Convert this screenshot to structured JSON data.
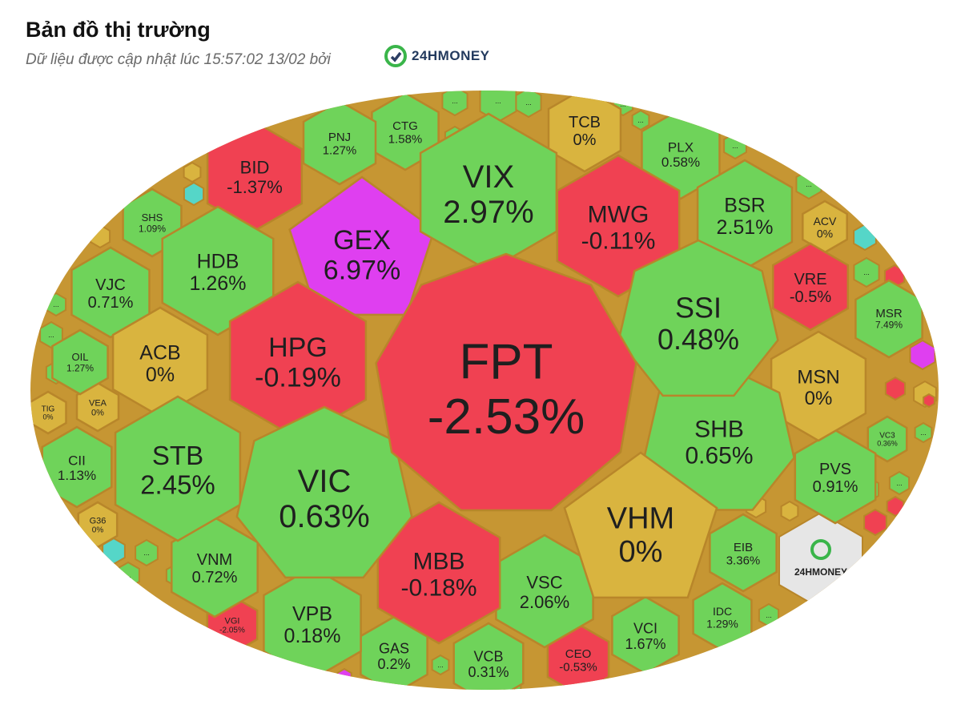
{
  "header": {
    "title": "Bản đồ thị trường",
    "subtitle": "Dữ liệu được cập nhật lúc 15:57:02 13/02 bởi",
    "brand_name": "24HMONEY"
  },
  "colors": {
    "up": "#6fd35a",
    "down": "#f04152",
    "flat": "#d9b43f",
    "ceiling": "#df3ff0",
    "floor": "#55d6c8",
    "logo_cell": "#e6e6e6",
    "border": "#b8862a"
  },
  "chart_data": {
    "type": "treemap",
    "title": "Bản đồ thị trường",
    "tiles": [
      {
        "ticker": "FPT",
        "change": "-2.53%",
        "value": -2.53,
        "status": "down"
      },
      {
        "ticker": "VIX",
        "change": "2.97%",
        "value": 2.97,
        "status": "up"
      },
      {
        "ticker": "GEX",
        "change": "6.97%",
        "value": 6.97,
        "status": "ceiling"
      },
      {
        "ticker": "HPG",
        "change": "-0.19%",
        "value": -0.19,
        "status": "down"
      },
      {
        "ticker": "MWG",
        "change": "-0.11%",
        "value": -0.11,
        "status": "down"
      },
      {
        "ticker": "SSI",
        "change": "0.48%",
        "value": 0.48,
        "status": "up"
      },
      {
        "ticker": "SHB",
        "change": "0.65%",
        "value": 0.65,
        "status": "up"
      },
      {
        "ticker": "VHM",
        "change": "0%",
        "value": 0,
        "status": "flat"
      },
      {
        "ticker": "MBB",
        "change": "-0.18%",
        "value": -0.18,
        "status": "down"
      },
      {
        "ticker": "VIC",
        "change": "0.63%",
        "value": 0.63,
        "status": "up"
      },
      {
        "ticker": "STB",
        "change": "2.45%",
        "value": 2.45,
        "status": "up"
      },
      {
        "ticker": "ACB",
        "change": "0%",
        "value": 0,
        "status": "flat"
      },
      {
        "ticker": "HDB",
        "change": "1.26%",
        "value": 1.26,
        "status": "up"
      },
      {
        "ticker": "BID",
        "change": "-1.37%",
        "value": -1.37,
        "status": "down"
      },
      {
        "ticker": "PNJ",
        "change": "1.27%",
        "value": 1.27,
        "status": "up"
      },
      {
        "ticker": "CTG",
        "change": "1.58%",
        "value": 1.58,
        "status": "up"
      },
      {
        "ticker": "TCB",
        "change": "0%",
        "value": 0,
        "status": "flat"
      },
      {
        "ticker": "PLX",
        "change": "0.58%",
        "value": 0.58,
        "status": "up"
      },
      {
        "ticker": "BSR",
        "change": "2.51%",
        "value": 2.51,
        "status": "up"
      },
      {
        "ticker": "ACV",
        "change": "0%",
        "value": 0,
        "status": "flat"
      },
      {
        "ticker": "VRE",
        "change": "-0.5%",
        "value": -0.5,
        "status": "down"
      },
      {
        "ticker": "MSR",
        "change": "7.49%",
        "value": 7.49,
        "status": "up"
      },
      {
        "ticker": "MSN",
        "change": "0%",
        "value": 0,
        "status": "flat"
      },
      {
        "ticker": "VC3",
        "change": "0.36%",
        "value": 0.36,
        "status": "up"
      },
      {
        "ticker": "PVS",
        "change": "0.91%",
        "value": 0.91,
        "status": "up"
      },
      {
        "ticker": "EIB",
        "change": "3.36%",
        "value": 3.36,
        "status": "up"
      },
      {
        "ticker": "IDC",
        "change": "1.29%",
        "value": 1.29,
        "status": "up"
      },
      {
        "ticker": "VCI",
        "change": "1.67%",
        "value": 1.67,
        "status": "up"
      },
      {
        "ticker": "CEO",
        "change": "-0.53%",
        "value": -0.53,
        "status": "down"
      },
      {
        "ticker": "VCB",
        "change": "0.31%",
        "value": 0.31,
        "status": "up"
      },
      {
        "ticker": "VSC",
        "change": "2.06%",
        "value": 2.06,
        "status": "up"
      },
      {
        "ticker": "GAS",
        "change": "0.2%",
        "value": 0.2,
        "status": "up"
      },
      {
        "ticker": "VPB",
        "change": "0.18%",
        "value": 0.18,
        "status": "up"
      },
      {
        "ticker": "VGI",
        "change": "-2.05%",
        "value": -2.05,
        "status": "down"
      },
      {
        "ticker": "VNM",
        "change": "0.72%",
        "value": 0.72,
        "status": "up"
      },
      {
        "ticker": "G36",
        "change": "0%",
        "value": 0,
        "status": "flat"
      },
      {
        "ticker": "CII",
        "change": "1.13%",
        "value": 1.13,
        "status": "up"
      },
      {
        "ticker": "TIG",
        "change": "0%",
        "value": 0,
        "status": "flat"
      },
      {
        "ticker": "VEA",
        "change": "0%",
        "value": 0,
        "status": "flat"
      },
      {
        "ticker": "OIL",
        "change": "1.27%",
        "value": 1.27,
        "status": "up"
      },
      {
        "ticker": "VJC",
        "change": "0.71%",
        "value": 0.71,
        "status": "up"
      },
      {
        "ticker": "SHS",
        "change": "1.09%",
        "value": 1.09,
        "status": "up"
      }
    ],
    "small_tiles": [
      {
        "label": "...",
        "status": "up"
      },
      {
        "label": "...",
        "status": "up"
      },
      {
        "label": "...",
        "status": "up"
      },
      {
        "label": "...",
        "status": "up"
      },
      {
        "label": "...",
        "status": "up"
      },
      {
        "label": "...",
        "status": "up"
      },
      {
        "label": "...",
        "status": "up"
      },
      {
        "label": "...",
        "status": "up"
      },
      {
        "label": "...",
        "status": "up"
      },
      {
        "label": "...",
        "status": "up"
      },
      {
        "label": "...",
        "status": "up"
      },
      {
        "label": "...",
        "status": "up"
      },
      {
        "label": "...",
        "status": "up"
      },
      {
        "label": "...",
        "status": "up"
      },
      {
        "label": "...",
        "status": "up"
      },
      {
        "label": "...",
        "status": "up"
      },
      {
        "label": "...",
        "status": "up"
      },
      {
        "label": "...",
        "status": "up"
      },
      {
        "label": "...",
        "status": "up"
      },
      {
        "label": "...",
        "status": "up"
      },
      {
        "label": "...",
        "status": "up"
      },
      {
        "label": "...",
        "status": "up"
      },
      {
        "label": "...",
        "status": "up"
      },
      {
        "label": "...",
        "status": "up"
      },
      {
        "label": "",
        "status": "flat"
      },
      {
        "label": "",
        "status": "flat"
      },
      {
        "label": "",
        "status": "flat"
      },
      {
        "label": "",
        "status": "flat"
      },
      {
        "label": "",
        "status": "flat"
      },
      {
        "label": "",
        "status": "flat"
      },
      {
        "label": "",
        "status": "down"
      },
      {
        "label": "",
        "status": "down"
      },
      {
        "label": "",
        "status": "down"
      },
      {
        "label": "",
        "status": "down"
      },
      {
        "label": "",
        "status": "down"
      },
      {
        "label": "",
        "status": "floor"
      },
      {
        "label": "",
        "status": "floor"
      },
      {
        "label": "",
        "status": "floor"
      },
      {
        "label": "",
        "status": "ceiling"
      },
      {
        "label": "",
        "status": "ceiling"
      }
    ]
  }
}
